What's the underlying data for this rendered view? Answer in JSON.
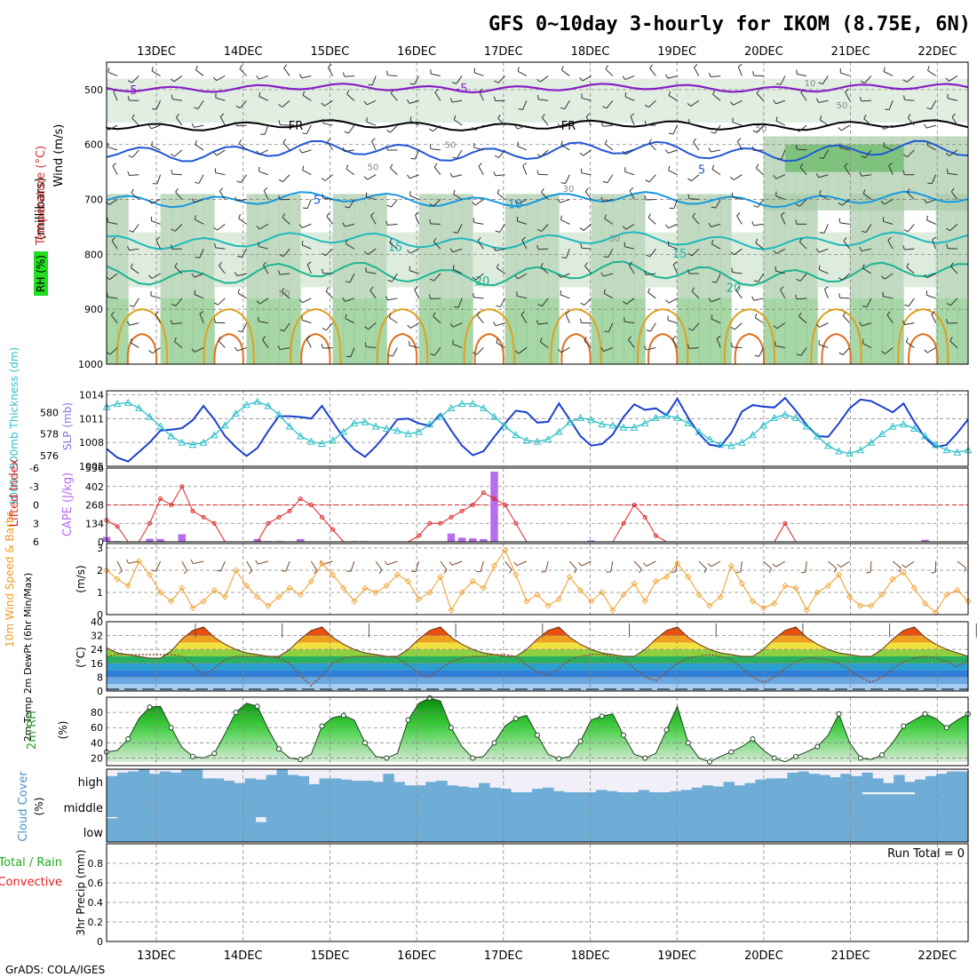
{
  "title": "GFS 0~10day 3-hourly for IKOM (8.75E, 6N)",
  "footer": "GrADS: COLA/IGES",
  "colors": {
    "grid": "#888888",
    "rh_light": "#d9ead9",
    "rh_mid": "#a7cba7",
    "rh_dark": "#6dbb6d",
    "rh_bright": "#22dd22",
    "wind_purple": "#8a1fc6",
    "thickness": "#2cc0c8",
    "slp": "#1c3fd1",
    "lifted_index": "#dd2222",
    "cape": "#b86cf0",
    "wind_speed": "#f09a20",
    "barb": "#7a4a2a",
    "dewpoint": "#8a4e34",
    "cloud": "#6fadd6",
    "cloud_clear": "#f1f0f8"
  },
  "dates": {
    "top": [
      "13DEC",
      "14DEC",
      "15DEC",
      "16DEC",
      "17DEC",
      "18DEC",
      "19DEC",
      "20DEC",
      "21DEC",
      "22DEC"
    ],
    "bottom": [
      "13DEC",
      "14DEC",
      "15DEC",
      "16DEC",
      "17DEC",
      "18DEC",
      "19DEC",
      "20DEC",
      "21DEC",
      "22DEC"
    ]
  },
  "panels": {
    "upper_air": {
      "labels": [
        "Wind (m/s)",
        "Temperature (°C)",
        "RH (%)",
        "(millibars)"
      ],
      "yticks": [
        "500",
        "600",
        "700",
        "800",
        "900",
        "1000"
      ],
      "contour_labels": {
        "temp": [
          "-5",
          "-5",
          "FR",
          "FR",
          "5",
          "5",
          "10",
          "15",
          "15",
          "20",
          "20"
        ],
        "rh": [
          "10",
          "50",
          "50",
          "50",
          "50",
          "30",
          "30",
          "50"
        ]
      }
    },
    "thickness_slp": {
      "left_label": "1000~500mb Thickness (dm)",
      "right_label": "SLP (mb)",
      "left_ticks": [
        "580",
        "578",
        "576"
      ],
      "right_ticks": [
        "1014",
        "1011",
        "1008",
        "1005"
      ]
    },
    "li_cape": {
      "left_label": "Lifted Index",
      "right_label": "CAPE (J/kg)",
      "left_ticks": [
        "-6",
        "-3",
        "0",
        "3",
        "6"
      ],
      "right_ticks": [
        "536",
        "402",
        "268",
        "134",
        "0"
      ]
    },
    "wind10m": {
      "label": "10m Wind Speed & Barbs",
      "unit": "(m/s)",
      "ticks": [
        "3",
        "2",
        "1",
        "0"
      ]
    },
    "temp2m": {
      "label": "2m Temp 2m DewPt (6hr Min/Max)",
      "unit": "(°C)",
      "ticks": [
        "40",
        "32",
        "24",
        "16",
        "8",
        "0"
      ]
    },
    "rh2m": {
      "label": "2m RH",
      "unit": "(%)",
      "ticks": [
        "80",
        "60",
        "40",
        "20"
      ]
    },
    "cloud": {
      "label": "Cloud Cover",
      "unit": "(%)",
      "levels": [
        "high",
        "middle",
        "low"
      ]
    },
    "precip": {
      "label": "3hr Precip (mm)",
      "legend_total": "Total / Rain",
      "legend_convective": "Convective",
      "run_total": "Run Total = 0",
      "ticks": [
        "0.8",
        "0.6",
        "0.4",
        "0.2",
        "0"
      ]
    }
  },
  "chart_data": {
    "type": "meteogram",
    "time_step_hours": 3,
    "steps": 81,
    "start": "12DEC 15Z (approx)",
    "slp_mb": [
      1007.2,
      1006.1,
      1005.6,
      1006.8,
      1008.0,
      1009.5,
      1009.6,
      1009.8,
      1010.8,
      1012.6,
      1010.9,
      1008.8,
      1007.4,
      1006.3,
      1007.3,
      1009.4,
      1011.3,
      1011.3,
      1011.2,
      1011.0,
      1012.6,
      1010.6,
      1008.6,
      1007.1,
      1006.2,
      1007.5,
      1009.1,
      1010.9,
      1011.0,
      1010.4,
      1010.1,
      1011.6,
      1009.5,
      1007.6,
      1006.4,
      1006.9,
      1008.7,
      1010.4,
      1012.0,
      1011.8,
      1010.5,
      1010.6,
      1012.9,
      1010.9,
      1008.8,
      1007.6,
      1007.8,
      1009.0,
      1011.2,
      1012.8,
      1012.1,
      1012.3,
      1011.4,
      1013.5,
      1011.1,
      1009.1,
      1007.7,
      1007.5,
      1009.2,
      1011.9,
      1012.7,
      1012.5,
      1012.4,
      1013.6,
      1012.0,
      1010.2,
      1008.8,
      1008.7,
      1010.4,
      1012.3,
      1013.4,
      1013.2,
      1012.5,
      1011.8,
      1012.9,
      1010.6,
      1008.6,
      1007.4,
      1007.7,
      1009.2,
      1010.9
    ],
    "thickness_dm": [
      580.5,
      580.8,
      580.9,
      580.4,
      579.6,
      578.7,
      577.8,
      577.2,
      577.0,
      577.2,
      577.9,
      578.8,
      579.9,
      580.7,
      581.0,
      580.6,
      579.8,
      578.7,
      577.8,
      577.3,
      577.1,
      577.4,
      578.2,
      579.0,
      579.1,
      578.7,
      578.5,
      578.3,
      578.0,
      578.2,
      578.9,
      579.6,
      580.4,
      580.8,
      580.8,
      580.4,
      579.6,
      578.7,
      577.9,
      577.4,
      577.3,
      577.5,
      578.2,
      579.1,
      579.5,
      579.3,
      578.9,
      578.8,
      578.6,
      578.6,
      579.0,
      579.5,
      579.7,
      579.5,
      579.0,
      578.2,
      577.5,
      577.0,
      576.9,
      577.2,
      577.9,
      578.8,
      579.5,
      579.8,
      579.5,
      578.7,
      577.8,
      576.9,
      576.4,
      576.2,
      576.5,
      577.2,
      578.0,
      578.7,
      578.9,
      578.5,
      577.8,
      577.0,
      576.5,
      576.3,
      576.5
    ],
    "lifted_index": [
      2.5,
      3.5,
      6,
      6,
      3,
      -1,
      0,
      -3,
      1,
      2,
      3,
      6,
      6,
      6,
      6,
      3,
      2,
      1,
      -1,
      0,
      2,
      4,
      6,
      6,
      6,
      6,
      6,
      6,
      6,
      5,
      3,
      3,
      2,
      1,
      0,
      -2,
      -1,
      0,
      3,
      6,
      6,
      6,
      6,
      6,
      6,
      6,
      6,
      6,
      3,
      0,
      2,
      5,
      6,
      6,
      6,
      6,
      6,
      6,
      6,
      6,
      6,
      6,
      6,
      3,
      6,
      6,
      6,
      6,
      6,
      6,
      6,
      6,
      6,
      6,
      6,
      6,
      6,
      6,
      6,
      6,
      6
    ],
    "cape_jkg": [
      35,
      5,
      0,
      0,
      22,
      20,
      0,
      55,
      0,
      0,
      0,
      0,
      0,
      0,
      20,
      5,
      5,
      0,
      20,
      0,
      0,
      0,
      0,
      5,
      5,
      0,
      0,
      0,
      0,
      0,
      0,
      0,
      60,
      30,
      25,
      20,
      510,
      0,
      0,
      0,
      0,
      0,
      0,
      0,
      0,
      10,
      0,
      0,
      0,
      0,
      0,
      0,
      0,
      0,
      0,
      0,
      0,
      0,
      0,
      0,
      0,
      0,
      0,
      0,
      0,
      0,
      0,
      0,
      0,
      0,
      0,
      0,
      0,
      0,
      0,
      0,
      15,
      0,
      0,
      0,
      0
    ],
    "wind10m_ms": [
      2.0,
      1.6,
      1.3,
      2.4,
      1.8,
      1.0,
      0.6,
      1.2,
      0.3,
      0.6,
      1.1,
      0.8,
      2.0,
      1.3,
      0.8,
      0.4,
      0.8,
      1.2,
      0.9,
      1.5,
      2.3,
      1.8,
      1.2,
      0.6,
      1.2,
      1.0,
      1.3,
      1.8,
      1.5,
      0.7,
      1.0,
      1.7,
      0.2,
      1.0,
      1.5,
      1.2,
      2.2,
      2.9,
      1.8,
      0.6,
      0.9,
      0.4,
      0.7,
      1.7,
      1.1,
      0.6,
      1.0,
      0.2,
      0.9,
      1.4,
      0.6,
      1.5,
      1.7,
      2.3,
      1.7,
      0.9,
      0.4,
      0.8,
      2.2,
      1.4,
      0.6,
      0.3,
      0.5,
      1.3,
      1.2,
      0.2,
      1.0,
      1.3,
      1.8,
      0.8,
      0.4,
      0.4,
      0.9,
      1.6,
      1.9,
      1.2,
      0.5,
      0.1,
      0.9,
      1.1,
      0.6
    ],
    "temp2m_c": [
      25,
      22,
      21,
      20,
      19,
      19,
      23,
      30,
      35,
      37,
      31,
      27,
      24,
      22,
      21,
      20,
      20,
      24,
      30,
      35,
      37,
      31,
      27,
      24,
      22,
      21,
      20,
      20,
      24,
      30,
      35,
      37,
      31,
      27,
      24,
      22,
      21,
      20,
      20,
      24,
      30,
      35,
      37,
      31,
      27,
      24,
      22,
      21,
      20,
      20,
      24,
      30,
      35,
      37,
      31,
      27,
      24,
      22,
      21,
      20,
      20,
      24,
      30,
      35,
      37,
      31,
      27,
      24,
      22,
      21,
      20,
      20,
      24,
      30,
      35,
      37,
      31,
      27,
      24,
      22,
      20
    ],
    "dewpt2m_c": [
      20,
      21,
      21,
      21,
      21,
      21,
      21,
      20,
      15,
      9,
      13,
      18,
      20,
      20,
      20,
      20,
      19,
      16,
      9,
      3,
      9,
      16,
      19,
      20,
      20,
      20,
      20,
      19,
      15,
      10,
      8,
      13,
      17,
      19,
      20,
      20,
      21,
      21,
      20,
      15,
      11,
      9,
      13,
      18,
      20,
      21,
      21,
      20,
      18,
      13,
      8,
      6,
      11,
      16,
      19,
      20,
      21,
      20,
      18,
      13,
      8,
      5,
      8,
      13,
      17,
      19,
      19,
      18,
      16,
      12,
      8,
      5,
      8,
      13,
      17,
      19,
      20,
      19,
      17,
      14,
      18
    ],
    "rh2m_pct": [
      28,
      30,
      45,
      72,
      87,
      88,
      60,
      34,
      22,
      20,
      26,
      52,
      80,
      92,
      88,
      58,
      32,
      20,
      18,
      25,
      62,
      73,
      76,
      70,
      40,
      22,
      20,
      26,
      70,
      92,
      99,
      95,
      60,
      35,
      20,
      22,
      40,
      62,
      72,
      76,
      50,
      25,
      19,
      22,
      42,
      70,
      75,
      78,
      50,
      25,
      20,
      26,
      57,
      88,
      40,
      20,
      15,
      22,
      28,
      35,
      45,
      30,
      20,
      15,
      22,
      28,
      35,
      50,
      78,
      40,
      20,
      18,
      24,
      40,
      62,
      70,
      78,
      72,
      60,
      70,
      78
    ],
    "cloud_high_pct": [
      70,
      85,
      90,
      100,
      80,
      90,
      85,
      100,
      100,
      60,
      60,
      50,
      40,
      60,
      55,
      75,
      100,
      75,
      70,
      35,
      60,
      60,
      55,
      50,
      50,
      45,
      80,
      45,
      30,
      30,
      45,
      50,
      30,
      25,
      20,
      40,
      20,
      15,
      0,
      0,
      15,
      20,
      5,
      0,
      0,
      0,
      10,
      5,
      0,
      0,
      10,
      0,
      0,
      5,
      10,
      20,
      30,
      25,
      45,
      30,
      40,
      55,
      60,
      60,
      85,
      90,
      80,
      75,
      65,
      80,
      70,
      85,
      60,
      40,
      75,
      45,
      55,
      70,
      80,
      90,
      90
    ],
    "cloud_mid_pct": [
      100,
      100,
      100,
      100,
      100,
      100,
      100,
      100,
      100,
      100,
      100,
      100,
      100,
      100,
      100,
      100,
      100,
      100,
      100,
      100,
      100,
      100,
      100,
      100,
      100,
      100,
      100,
      100,
      100,
      100,
      100,
      100,
      100,
      100,
      100,
      100,
      100,
      100,
      100,
      100,
      100,
      100,
      100,
      100,
      100,
      100,
      100,
      100,
      100,
      100,
      100,
      100,
      100,
      100,
      100,
      100,
      100,
      100,
      100,
      100,
      100,
      100,
      100,
      100,
      100,
      100,
      100,
      100,
      100,
      100,
      100,
      92,
      92,
      92,
      92,
      92,
      100,
      100,
      100,
      100,
      100
    ],
    "cloud_low_pct": [
      95,
      100,
      100,
      100,
      100,
      100,
      100,
      100,
      100,
      100,
      100,
      100,
      100,
      100,
      80,
      100,
      100,
      100,
      100,
      100,
      100,
      100,
      100,
      100,
      100,
      100,
      100,
      100,
      100,
      100,
      100,
      100,
      100,
      100,
      100,
      100,
      100,
      100,
      100,
      100,
      100,
      100,
      100,
      100,
      100,
      100,
      100,
      100,
      100,
      100,
      100,
      100,
      100,
      100,
      100,
      100,
      100,
      100,
      100,
      100,
      100,
      100,
      100,
      100,
      100,
      100,
      100,
      100,
      100,
      100,
      100,
      100,
      100,
      100,
      100,
      100,
      100,
      100,
      100,
      100,
      100
    ],
    "precip_mm": [
      0,
      0,
      0,
      0,
      0,
      0,
      0,
      0,
      0,
      0,
      0,
      0,
      0,
      0,
      0,
      0,
      0,
      0,
      0,
      0,
      0,
      0,
      0,
      0,
      0,
      0,
      0,
      0,
      0,
      0,
      0,
      0,
      0,
      0,
      0,
      0,
      0,
      0,
      0,
      0,
      0,
      0,
      0,
      0,
      0,
      0,
      0,
      0,
      0,
      0,
      0,
      0,
      0,
      0,
      0,
      0,
      0,
      0,
      0,
      0,
      0,
      0,
      0,
      0,
      0,
      0,
      0,
      0,
      0,
      0,
      0,
      0,
      0,
      0,
      0,
      0,
      0,
      0,
      0,
      0,
      0
    ],
    "upper_temp_contours_c": [
      -5,
      0,
      5,
      10,
      15,
      20,
      25,
      30
    ],
    "ylims": {
      "pressure_mb": [
        1000,
        450
      ],
      "slp_mb": [
        1005,
        1014.5
      ],
      "thickness_dm": [
        575,
        582
      ],
      "lifted_index": [
        6,
        -6
      ],
      "cape_jkg": [
        0,
        536
      ],
      "wind10m_ms": [
        0,
        3.2
      ],
      "temp2m_c": [
        0,
        40
      ],
      "rh2m_pct": [
        0,
        100
      ],
      "precip_mm": [
        0,
        1
      ]
    }
  }
}
